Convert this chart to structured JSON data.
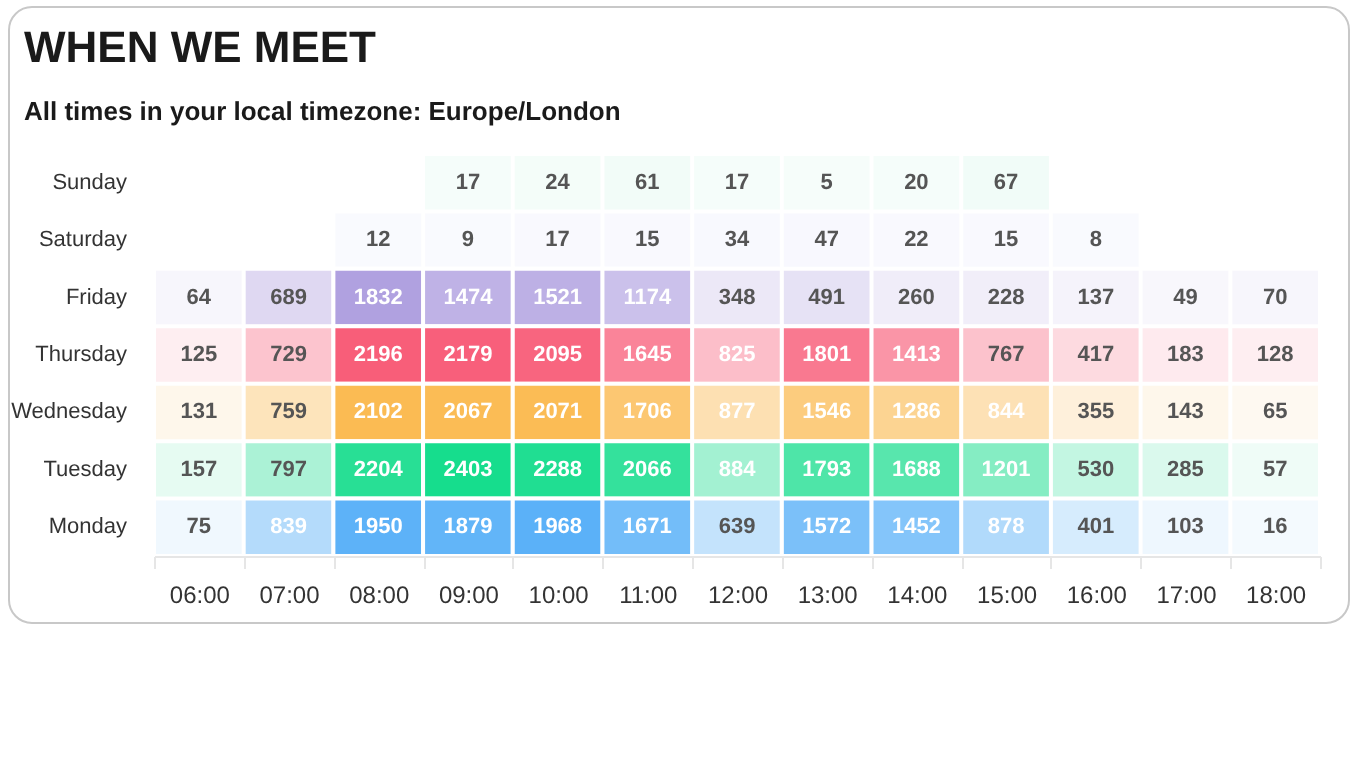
{
  "chart_data": {
    "type": "heatmap",
    "title": "WHEN WE MEET",
    "subtitle": "All times in your local timezone: Europe/London",
    "categories": [
      "06:00",
      "07:00",
      "08:00",
      "09:00",
      "10:00",
      "11:00",
      "12:00",
      "13:00",
      "14:00",
      "15:00",
      "16:00",
      "17:00",
      "18:00"
    ],
    "y_categories": [
      "Sunday",
      "Saturday",
      "Friday",
      "Thursday",
      "Wednesday",
      "Tuesday",
      "Monday"
    ],
    "colors": [
      "#3fdca0",
      "#8f9cf2",
      "#9a86d8",
      "#f8506e",
      "#fbb23c",
      "#16dd8d",
      "#3aa2f7"
    ],
    "cells": [
      [
        null,
        null,
        null,
        17,
        24,
        61,
        17,
        5,
        20,
        67,
        null,
        null,
        null
      ],
      [
        null,
        null,
        12,
        9,
        17,
        15,
        34,
        47,
        22,
        15,
        8,
        null,
        null
      ],
      [
        64,
        689,
        1832,
        1474,
        1521,
        1174,
        348,
        491,
        260,
        228,
        137,
        49,
        70
      ],
      [
        125,
        729,
        2196,
        2179,
        2095,
        1645,
        825,
        1801,
        1413,
        767,
        417,
        183,
        128
      ],
      [
        131,
        759,
        2102,
        2067,
        2071,
        1706,
        877,
        1546,
        1286,
        844,
        355,
        143,
        65
      ],
      [
        157,
        797,
        2204,
        2403,
        2288,
        2066,
        884,
        1793,
        1688,
        1201,
        530,
        285,
        57
      ],
      [
        75,
        839,
        1950,
        1879,
        1968,
        1671,
        639,
        1572,
        1452,
        878,
        401,
        103,
        16
      ]
    ],
    "data_labels": true,
    "grid": false,
    "legend": false
  }
}
